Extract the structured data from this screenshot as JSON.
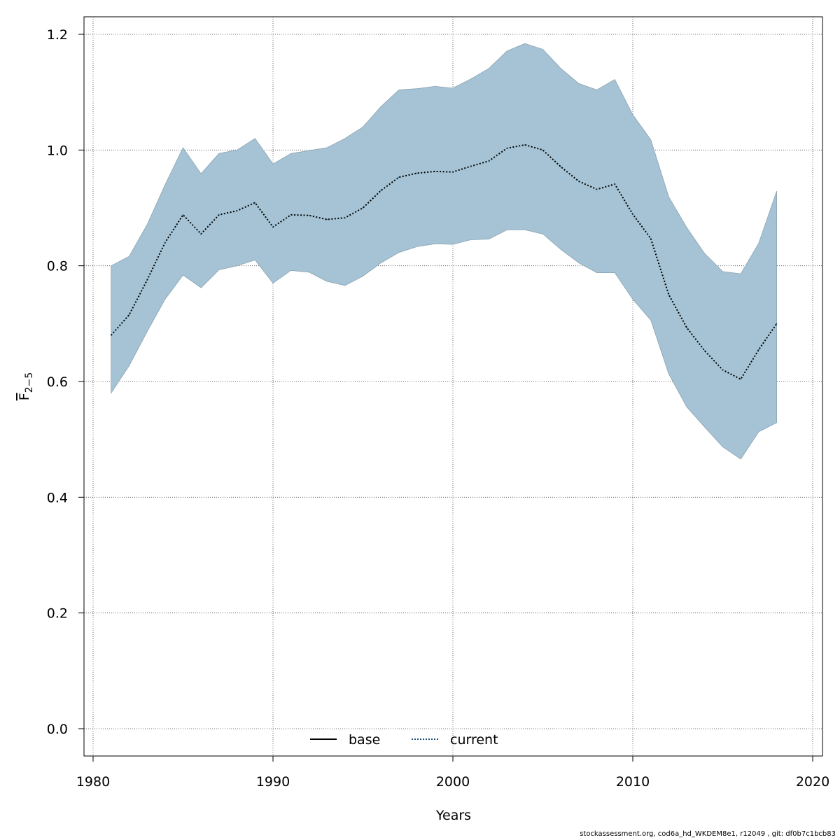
{
  "chart_data": {
    "type": "line",
    "xlabel": "Years",
    "ylabel_base": "F",
    "ylabel_sub": "2−5",
    "xlim": [
      1980,
      2020
    ],
    "ylim": [
      0.0,
      1.2
    ],
    "xticks": [
      1980,
      1990,
      2000,
      2010,
      2020
    ],
    "yticks": [
      0.0,
      0.2,
      0.4,
      0.6,
      0.8,
      1.0,
      1.2
    ],
    "grid": true,
    "legend_position": "bottom-center",
    "legend": [
      {
        "label": "base",
        "style": "solid",
        "color": "#000000"
      },
      {
        "label": "current",
        "style": "dotted",
        "color": "#1f4e79"
      }
    ],
    "x": [
      1981,
      1982,
      1983,
      1984,
      1985,
      1986,
      1987,
      1988,
      1989,
      1990,
      1991,
      1992,
      1993,
      1994,
      1995,
      1996,
      1997,
      1998,
      1999,
      2000,
      2001,
      2002,
      2003,
      2004,
      2005,
      2006,
      2007,
      2008,
      2009,
      2010,
      2011,
      2012,
      2013,
      2014,
      2015,
      2016,
      2017,
      2018
    ],
    "series": [
      {
        "name": "current",
        "values": [
          0.68,
          0.715,
          0.775,
          0.84,
          0.888,
          0.855,
          0.888,
          0.895,
          0.909,
          0.867,
          0.888,
          0.887,
          0.88,
          0.883,
          0.9,
          0.93,
          0.953,
          0.96,
          0.963,
          0.962,
          0.972,
          0.981,
          1.003,
          1.009,
          1.0,
          0.971,
          0.946,
          0.932,
          0.941,
          0.889,
          0.847,
          0.75,
          0.693,
          0.653,
          0.62,
          0.604,
          0.655,
          0.7
        ],
        "lower": [
          0.58,
          0.627,
          0.686,
          0.742,
          0.784,
          0.762,
          0.793,
          0.8,
          0.81,
          0.77,
          0.792,
          0.789,
          0.773,
          0.766,
          0.782,
          0.805,
          0.823,
          0.833,
          0.838,
          0.837,
          0.845,
          0.846,
          0.862,
          0.862,
          0.855,
          0.828,
          0.805,
          0.788,
          0.788,
          0.742,
          0.706,
          0.613,
          0.556,
          0.521,
          0.487,
          0.466,
          0.513,
          0.529
        ],
        "upper": [
          0.8,
          0.816,
          0.871,
          0.94,
          1.004,
          0.959,
          0.994,
          1.0,
          1.02,
          0.976,
          0.994,
          0.999,
          1.004,
          1.02,
          1.04,
          1.075,
          1.104,
          1.106,
          1.11,
          1.107,
          1.123,
          1.141,
          1.171,
          1.184,
          1.174,
          1.141,
          1.115,
          1.104,
          1.122,
          1.061,
          1.018,
          0.919,
          0.866,
          0.821,
          0.79,
          0.786,
          0.839,
          0.929
        ]
      }
    ],
    "band_color": "#a5c3d4",
    "band_edge_color": "#8aa3b2",
    "line_color": "#1f4e79"
  },
  "footer": "stockassessment.org, cod6a_hd_WKDEM8e1, r12049 , git: df0b7c1bcb83"
}
